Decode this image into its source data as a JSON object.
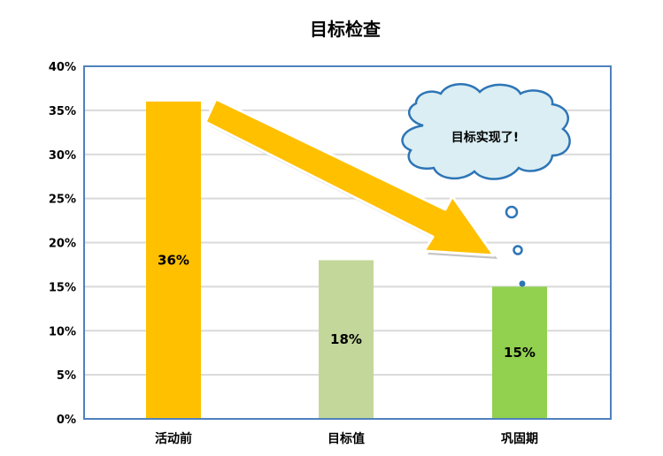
{
  "chart_data": {
    "type": "bar",
    "title": "目标检查",
    "categories": [
      "活动前",
      "目标值",
      "巩固期"
    ],
    "values": [
      36,
      18,
      15
    ],
    "data_labels": [
      "36%",
      "18%",
      "15%"
    ],
    "colors": [
      "#FFC000",
      "#C4D79B",
      "#92D050"
    ],
    "ylim": [
      0,
      40
    ],
    "yticks": [
      "0%",
      "5%",
      "10%",
      "15%",
      "20%",
      "25%",
      "30%",
      "35%",
      "40%"
    ],
    "grid": true,
    "axis_color": "#4F81BD",
    "gridline_color": "#D9D9D9",
    "annotations": {
      "callout_text": "目标实现了!",
      "callout_fill": "#DAEEF3",
      "callout_stroke": "#2E75B6",
      "arrow_fill": "#FFC000"
    }
  }
}
